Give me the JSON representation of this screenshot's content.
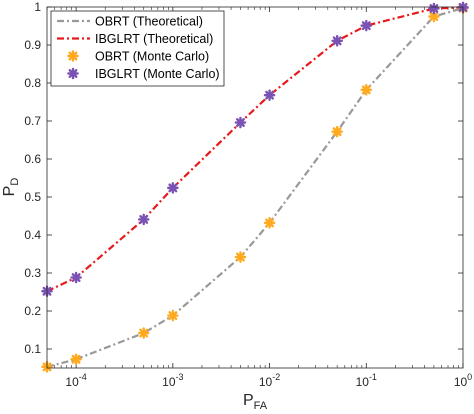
{
  "chart_data": {
    "type": "line",
    "xscale": "log",
    "xlim": [
      5e-05,
      1
    ],
    "ylim": [
      0.05,
      1
    ],
    "x_ticks": [
      {
        "value": 0.0001,
        "base": "10",
        "exp": "-4"
      },
      {
        "value": 0.001,
        "base": "10",
        "exp": "-3"
      },
      {
        "value": 0.01,
        "base": "10",
        "exp": "-2"
      },
      {
        "value": 0.1,
        "base": "10",
        "exp": "-1"
      },
      {
        "value": 1,
        "base": "10",
        "exp": "0"
      }
    ],
    "y_ticks": [
      {
        "value": 0.1,
        "label": "0.1"
      },
      {
        "value": 0.2,
        "label": "0.2"
      },
      {
        "value": 0.3,
        "label": "0.3"
      },
      {
        "value": 0.4,
        "label": "0.4"
      },
      {
        "value": 0.5,
        "label": "0.5"
      },
      {
        "value": 0.6,
        "label": "0.6"
      },
      {
        "value": 0.7,
        "label": "0.7"
      },
      {
        "value": 0.8,
        "label": "0.8"
      },
      {
        "value": 0.9,
        "label": "0.9"
      },
      {
        "value": 1,
        "label": "1"
      }
    ],
    "xlabel": {
      "main": "P",
      "sub": "FA"
    },
    "ylabel": {
      "main": "P",
      "sub": "D"
    },
    "grid": false,
    "legend_position": "top-left",
    "series": [
      {
        "name": "OBRT (Theoretical)",
        "kind": "line",
        "color": "#999999",
        "dash": "dash-dot",
        "x": [
          5e-05,
          0.0001,
          0.0005,
          0.001,
          0.005,
          0.01,
          0.05,
          0.1,
          0.5,
          1
        ],
        "y": [
          0.053,
          0.073,
          0.142,
          0.188,
          0.342,
          0.432,
          0.672,
          0.782,
          0.975,
          0.997
        ]
      },
      {
        "name": "IBGLRT (Theoretical)",
        "kind": "line",
        "color": "#e8191c",
        "dash": "dash-dot",
        "x": [
          5e-05,
          0.0001,
          0.0005,
          0.001,
          0.005,
          0.01,
          0.05,
          0.1,
          0.5,
          1
        ],
        "y": [
          0.252,
          0.288,
          0.441,
          0.524,
          0.696,
          0.768,
          0.911,
          0.951,
          0.996,
          0.999
        ]
      },
      {
        "name": "OBRT (Monte Carlo)",
        "kind": "markers",
        "color": "#ffaa1f",
        "x": [
          5e-05,
          0.0001,
          0.0005,
          0.001,
          0.005,
          0.01,
          0.05,
          0.1,
          0.5,
          1
        ],
        "y": [
          0.053,
          0.073,
          0.142,
          0.188,
          0.342,
          0.432,
          0.672,
          0.782,
          0.975,
          0.997
        ]
      },
      {
        "name": "IBGLRT (Monte Carlo)",
        "kind": "markers",
        "color": "#7a52b3",
        "x": [
          5e-05,
          0.0001,
          0.0005,
          0.001,
          0.005,
          0.01,
          0.05,
          0.1,
          0.5,
          1
        ],
        "y": [
          0.252,
          0.288,
          0.441,
          0.524,
          0.696,
          0.768,
          0.911,
          0.951,
          0.996,
          0.999
        ]
      }
    ]
  }
}
